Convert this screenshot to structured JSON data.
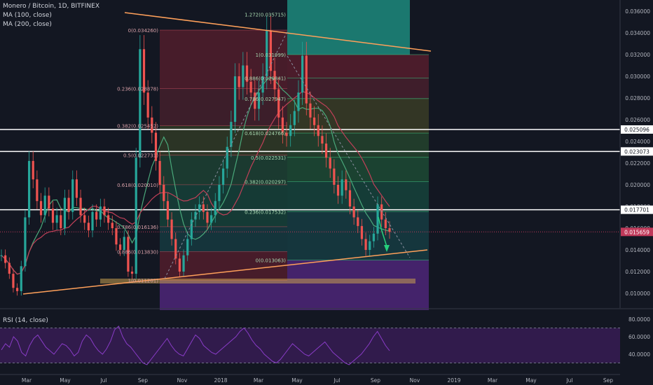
{
  "header": {
    "symbol": "Monero / Bitcoin, 1D, BITFINEX",
    "ma100": "MA (100, close)",
    "ma200": "MA (200, close)",
    "rsi": "RSI (14, close)"
  },
  "colors": {
    "background": "#131722",
    "candle_up": "#26a69a",
    "candle_down": "#ef5350",
    "trendline": "#ffa05a",
    "ma100": "#4aa87a",
    "ma200": "#c04058",
    "rsi_line": "#8a3cc8",
    "rsi_band": "#4a1f70",
    "current_price": "#c0395a"
  },
  "chart_data": {
    "type": "candlestick",
    "price_axis": {
      "ticks": [
        "0.036000",
        "0.034000",
        "0.032000",
        "0.030000",
        "0.028000",
        "0.026000",
        "0.024000",
        "0.022000",
        "0.020000",
        "0.018000",
        "0.016000",
        "0.014000",
        "0.012000",
        "0.010000"
      ],
      "min": 0.0085,
      "max": 0.0365
    },
    "time_axis": {
      "ticks": [
        "Mar",
        "May",
        "Jul",
        "Sep",
        "Nov",
        "2018",
        "Mar",
        "May",
        "Jul",
        "Sep",
        "Nov",
        "2019",
        "Mar",
        "May",
        "Jul",
        "Sep"
      ]
    },
    "price_labels": [
      {
        "text": "0.025096",
        "value": 0.025096
      },
      {
        "text": "0.023073",
        "value": 0.023073
      },
      {
        "text": "0.017701",
        "value": 0.017701
      }
    ],
    "current_price": {
      "text": "0.015659",
      "value": 0.015659
    },
    "horizontal_lines": [
      0.025096,
      0.023073,
      0.017701
    ],
    "fib_left": {
      "levels": [
        {
          "text": "0(0.034260)",
          "value": 0.03426
        },
        {
          "text": "0.236(0.028878)",
          "value": 0.028878
        },
        {
          "text": "0.382(0.025452)",
          "value": 0.025452
        },
        {
          "text": "0.5(0.022731)",
          "value": 0.022731
        },
        {
          "text": "0.618(0.020010)",
          "value": 0.02001
        },
        {
          "text": "0.786(0.016136)",
          "value": 0.016136
        },
        {
          "text": "0.886(0.013830)",
          "value": 0.01383
        },
        {
          "text": "1(0.011201)",
          "value": 0.011201
        }
      ],
      "colors": [
        "#a8243a",
        "#8a2a3a",
        "#5a6a2a",
        "#2a7a4a",
        "#1a7a5a",
        "#1a6a6a",
        "#a8243a",
        "#5a2a8a"
      ]
    },
    "fib_right": {
      "levels": [
        {
          "text": "1.272(0.035715)",
          "value": 0.035715
        },
        {
          "text": "1(0.031999)",
          "value": 0.031999
        },
        {
          "text": "0.886(0.029841)",
          "value": 0.029841
        },
        {
          "text": "0.786(0.027947)",
          "value": 0.027947
        },
        {
          "text": "0.618(0.024766)",
          "value": 0.024766
        },
        {
          "text": "0.5(0.022531)",
          "value": 0.022531
        },
        {
          "text": "0.382(0.020297)",
          "value": 0.020297
        },
        {
          "text": "0.236(0.017532)",
          "value": 0.017532
        },
        {
          "text": "0(0.013063)",
          "value": 0.013063
        }
      ]
    },
    "rsi": {
      "ticks": [
        "80.0000",
        "60.0000",
        "40.0000"
      ],
      "upper": 70,
      "lower": 30,
      "values": [
        45,
        52,
        48,
        60,
        55,
        42,
        38,
        50,
        58,
        62,
        55,
        48,
        44,
        40,
        46,
        52,
        50,
        45,
        38,
        42,
        55,
        62,
        58,
        50,
        44,
        40,
        46,
        55,
        68,
        72,
        60,
        52,
        48,
        42,
        36,
        30,
        28,
        34,
        40,
        46,
        52,
        58,
        50,
        44,
        40,
        38,
        46,
        54,
        62,
        58,
        50,
        46,
        42,
        40,
        44,
        48,
        52,
        56,
        60,
        66,
        70,
        64,
        56,
        50,
        46,
        40,
        36,
        32,
        30,
        34,
        40,
        46,
        52,
        48,
        44,
        40,
        38,
        42,
        46,
        50,
        54,
        48,
        42,
        38,
        34,
        30,
        28,
        32,
        36,
        40,
        46,
        52,
        60,
        66,
        58,
        50,
        44
      ]
    },
    "price_series": [
      0.0135,
      0.0128,
      0.0118,
      0.0105,
      0.0102,
      0.0125,
      0.017,
      0.0222,
      0.0205,
      0.0185,
      0.0172,
      0.019,
      0.0178,
      0.0165,
      0.0172,
      0.016,
      0.0188,
      0.0175,
      0.0205,
      0.0188,
      0.0172,
      0.0165,
      0.0158,
      0.0175,
      0.0168,
      0.018,
      0.0172,
      0.0165,
      0.016,
      0.0145,
      0.014,
      0.0152,
      0.012,
      0.0118,
      0.0225,
      0.0325,
      0.0285,
      0.0262,
      0.0248,
      0.0222,
      0.02,
      0.0185,
      0.0168,
      0.015,
      0.0132,
      0.012,
      0.0135,
      0.015,
      0.0168,
      0.0175,
      0.0182,
      0.0175,
      0.0165,
      0.0172,
      0.0185,
      0.02,
      0.0215,
      0.0235,
      0.0258,
      0.03,
      0.029,
      0.031,
      0.0295,
      0.0285,
      0.027,
      0.0285,
      0.03,
      0.0342,
      0.0305,
      0.0288,
      0.0262,
      0.0248,
      0.0245,
      0.0255,
      0.0268,
      0.0285,
      0.0319,
      0.0275,
      0.0262,
      0.0255,
      0.0245,
      0.0238,
      0.0225,
      0.0215,
      0.02,
      0.019,
      0.0205,
      0.0195,
      0.018,
      0.017,
      0.0162,
      0.015,
      0.014,
      0.0148,
      0.0155,
      0.0182,
      0.0168,
      0.016,
      0.01566
    ]
  }
}
